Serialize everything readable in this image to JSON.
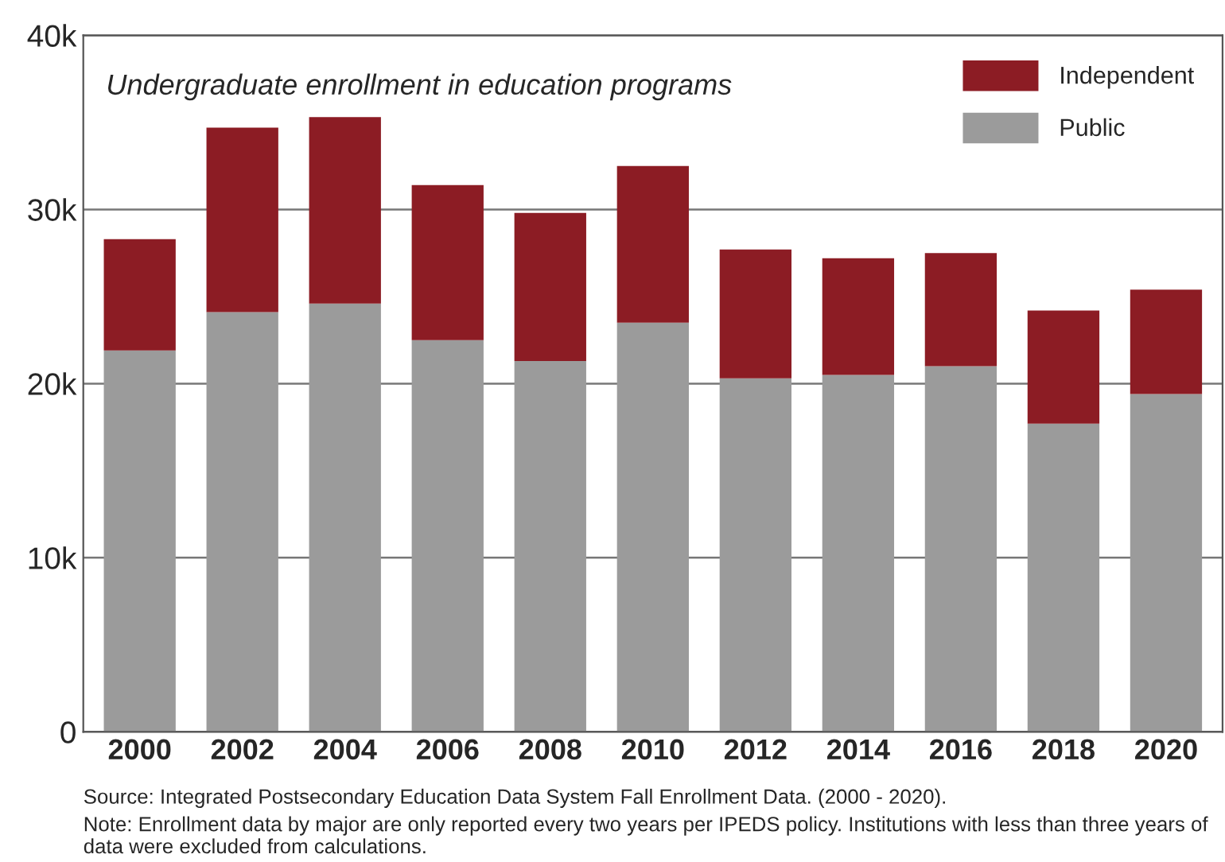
{
  "chart_data": {
    "type": "bar",
    "title": "Undergraduate enrollment in education programs",
    "categories": [
      "2000",
      "2002",
      "2004",
      "2006",
      "2008",
      "2010",
      "2012",
      "2014",
      "2016",
      "2018",
      "2020"
    ],
    "stacked": true,
    "series": [
      {
        "name": "Public",
        "color": "#9b9b9b",
        "values": [
          21900,
          24100,
          24600,
          22500,
          21300,
          23500,
          20300,
          20500,
          21000,
          17700,
          19400
        ]
      },
      {
        "name": "Independent",
        "color": "#8c1c24",
        "values": [
          6400,
          10600,
          10700,
          8900,
          8500,
          9000,
          7400,
          6700,
          6500,
          6500,
          6000
        ]
      }
    ],
    "ylim": [
      0,
      40000
    ],
    "yticks": [
      {
        "value": 0,
        "label": "0"
      },
      {
        "value": 10000,
        "label": "10k"
      },
      {
        "value": 20000,
        "label": "20k"
      },
      {
        "value": 30000,
        "label": "30k"
      },
      {
        "value": 40000,
        "label": "40k"
      }
    ],
    "grid": "y",
    "legend": "top right",
    "annotations": [
      "Source: Integrated Postsecondary Education Data System Fall Enrollment Data. (2000 - 2020).",
      "Note: Enrollment data by major are only reported every two years per IPEDS policy. Institutions with less than three years of data were excluded from calculations."
    ]
  }
}
